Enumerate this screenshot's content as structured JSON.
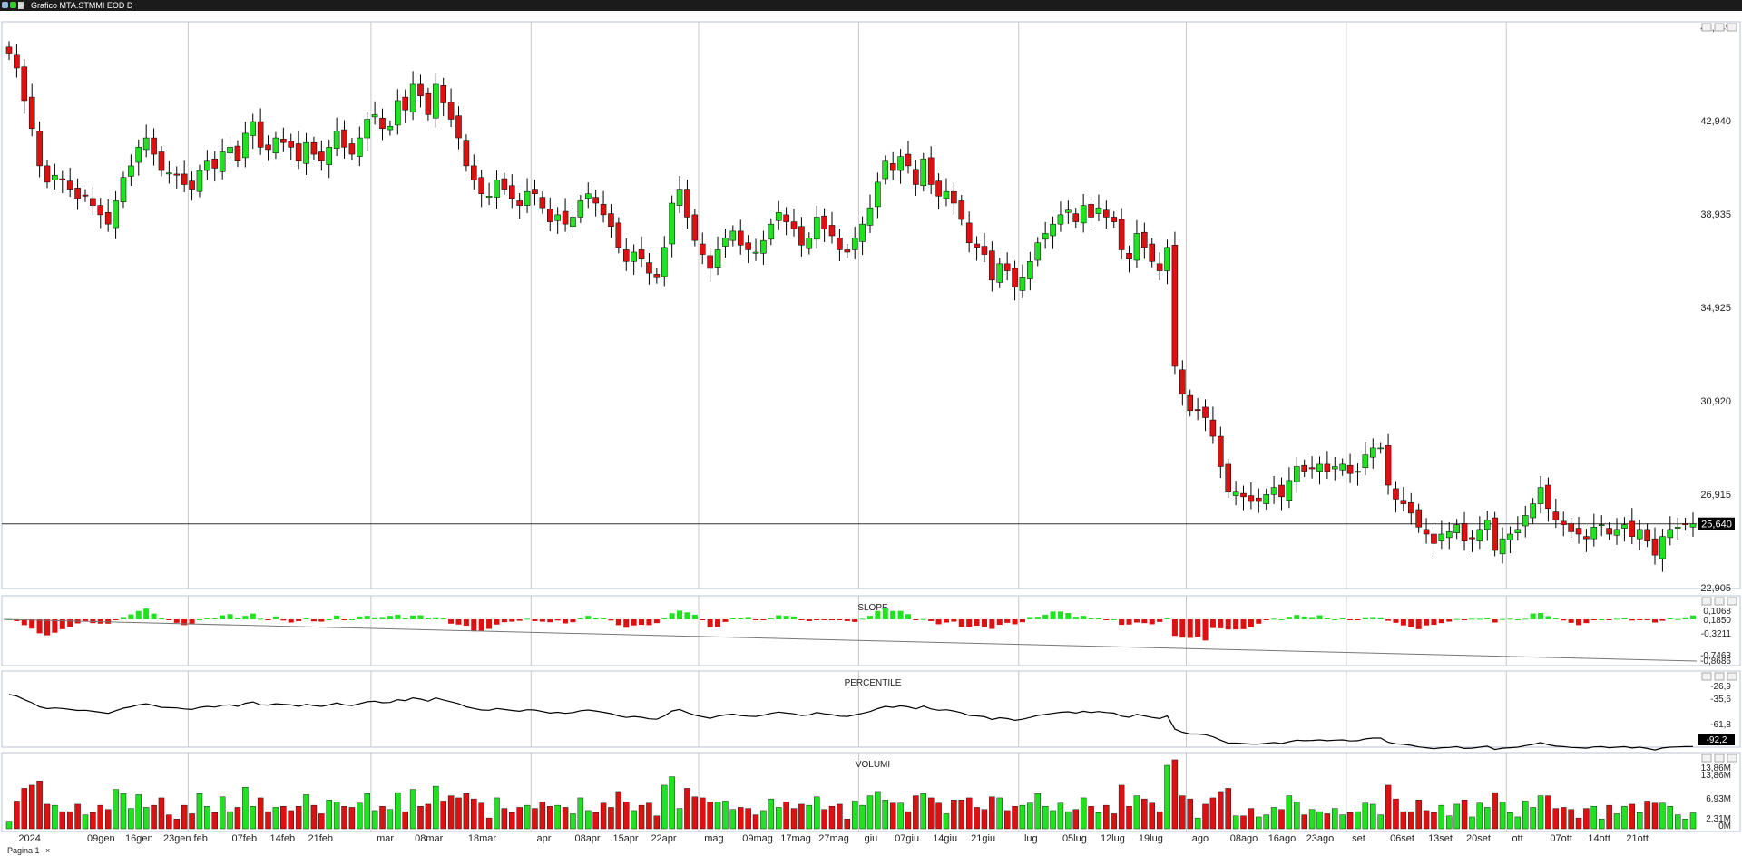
{
  "window": {
    "title": "Grafico MTA.STMMI EOD D"
  },
  "tabs": [
    {
      "label": "Pagina 1",
      "close": "×"
    }
  ],
  "colors": {
    "up": "#22e022",
    "down": "#dd1111",
    "wick": "#000000",
    "grid": "#c8c8c8",
    "lastPrice": "#000000"
  },
  "chart_data": [
    {
      "type": "candlestick",
      "title": "",
      "xlabels": [
        "2024",
        "09gen",
        "16gen",
        "23gen",
        "feb",
        "07feb",
        "14feb",
        "21feb",
        "mar",
        "08mar",
        "18mar",
        "apr",
        "08apr",
        "15apr",
        "22apr",
        "mag",
        "09mag",
        "17mag",
        "27mag",
        "giu",
        "07giu",
        "14giu",
        "21giu",
        "lug",
        "05lug",
        "12lug",
        "19lug",
        "ago",
        "08ago",
        "16ago",
        "23ago",
        "set",
        "06set",
        "13set",
        "20set",
        "ott",
        "07ott",
        "14ott",
        "21ott"
      ],
      "month_separators": [
        "feb",
        "mar",
        "apr",
        "mag",
        "giu",
        "lug",
        "ago",
        "set",
        "ott"
      ],
      "yticks": [
        "46,949",
        "42,940",
        "38,935",
        "34,925",
        "30,920",
        "26,915",
        "22,905"
      ],
      "ylim": [
        22.905,
        46.949
      ],
      "last_price": "25,640",
      "close": [
        45.8,
        45.2,
        43.8,
        42.6,
        41.0,
        40.3,
        40.6,
        40.4,
        40.0,
        39.6,
        39.7,
        39.3,
        38.9,
        38.5,
        39.5,
        40.5,
        41.0,
        41.8,
        42.2,
        41.5,
        40.8,
        40.7,
        40.6,
        40.2,
        40.0,
        40.8,
        41.2,
        40.9,
        41.6,
        41.8,
        41.2,
        42.4,
        42.9,
        41.8,
        41.7,
        42.2,
        42.0,
        41.8,
        41.2,
        42.0,
        41.5,
        41.2,
        41.8,
        42.5,
        41.8,
        41.5,
        42.2,
        43.0,
        43.2,
        42.6,
        42.7,
        43.8,
        43.4,
        44.5,
        44.0,
        43.2,
        44.5,
        43.7,
        43.0,
        42.2,
        41.0,
        40.4,
        39.8,
        39.7,
        40.4,
        40.0,
        39.6,
        39.3,
        39.9,
        39.8,
        39.2,
        38.6,
        38.9,
        38.5,
        38.8,
        39.5,
        39.8,
        39.4,
        38.9,
        38.4,
        37.5,
        36.9,
        37.3,
        37.0,
        36.4,
        36.2,
        37.5,
        39.4,
        40.0,
        38.8,
        37.8,
        37.2,
        36.6,
        37.4,
        37.9,
        38.2,
        37.6,
        37.4,
        37.3,
        37.8,
        38.5,
        39.0,
        38.6,
        38.3,
        37.6,
        37.9,
        38.8,
        38.3,
        38.0,
        37.4,
        37.3,
        37.9,
        38.5,
        39.2,
        40.3,
        41.2,
        40.8,
        41.4,
        41.0,
        40.2,
        41.3,
        40.2,
        39.7,
        39.9,
        39.4,
        38.7,
        37.7,
        37.5,
        37.2,
        36.1,
        36.8,
        36.5,
        35.8,
        36.2,
        36.9,
        37.7,
        38.1,
        38.5,
        38.9,
        39.1,
        38.6,
        39.3,
        38.8,
        39.2,
        38.8,
        38.6,
        37.4,
        37.0,
        38.1,
        37.5,
        36.9,
        36.5,
        37.5,
        32.4,
        31.2,
        30.5,
        30.5,
        30.2,
        29.4,
        28.1,
        27.0,
        27.0,
        26.8,
        26.6,
        26.6,
        26.9,
        27.2,
        26.8,
        27.5,
        28.1,
        27.9,
        28.0,
        28.2,
        27.9,
        28.1,
        28.2,
        27.8,
        27.9,
        28.6,
        28.9,
        28.9,
        27.3,
        26.7,
        26.5,
        26.1,
        25.5,
        25.2,
        24.8,
        25.2,
        25.3,
        25.6,
        24.9,
        25.0,
        25.4,
        25.8,
        24.5,
        25.0,
        25.2,
        25.4,
        26.0,
        26.5,
        27.2,
        26.3,
        25.8,
        25.6,
        25.3,
        25.2,
        25.0,
        25.5,
        25.6,
        25.2,
        25.4,
        25.6,
        25.1,
        25.4,
        24.9,
        24.3,
        25.1,
        25.4,
        25.5,
        25.6,
        25.64
      ],
      "panes": [
        {
          "title": "SLOPE",
          "yticks": [
            "0,1068",
            "0,1850",
            "-0,3211",
            "-0,7463",
            "-0,8686"
          ]
        },
        {
          "title": "PERCENTILE",
          "yticks": [
            "-26,9",
            "-35,6",
            "-61,8"
          ],
          "last": "-92,2"
        },
        {
          "title": "VOLUMI",
          "yticks": [
            "13,86M",
            "13,86M",
            "6,93M",
            "2,31M",
            "0M"
          ]
        }
      ]
    }
  ]
}
